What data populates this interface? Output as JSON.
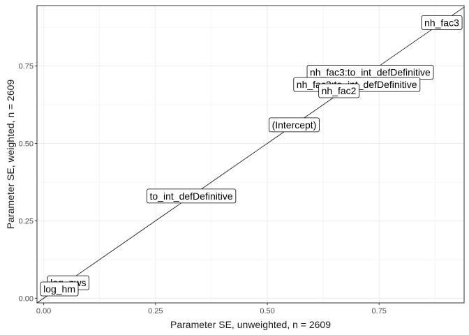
{
  "chart_data": {
    "type": "scatter",
    "xlabel": "Parameter SE, unweighted, n =  2609",
    "ylabel": "Parameter SE, weighted, n =  2609",
    "xlim": [
      -0.015,
      0.94
    ],
    "ylim": [
      -0.015,
      0.945
    ],
    "xticks": [
      0,
      0.25,
      0.5,
      0.75
    ],
    "yticks": [
      0,
      0.25,
      0.5,
      0.75
    ],
    "xtick_labels": [
      "0.00",
      "0.25",
      "0.50",
      "0.75"
    ],
    "ytick_labels": [
      "0.00",
      "0.25",
      "0.50",
      "0.75"
    ],
    "grid": true,
    "reference_line": "y = x",
    "points": [
      {
        "label": "nh_fac3",
        "x": 0.89,
        "y": 0.89
      },
      {
        "label": "nh_fac3:to_int_defDefinitive",
        "x": 0.73,
        "y": 0.73
      },
      {
        "label": "nh_fac2:to_int_defDefinitive",
        "x": 0.7,
        "y": 0.69
      },
      {
        "label": "nh_fac2",
        "x": 0.66,
        "y": 0.67
      },
      {
        "label": "(Intercept)",
        "x": 0.56,
        "y": 0.56
      },
      {
        "label": "to_int_defDefinitive",
        "x": 0.33,
        "y": 0.33
      },
      {
        "label": "log_pws",
        "x": 0.055,
        "y": 0.05
      },
      {
        "label": "log_hm",
        "x": 0.035,
        "y": 0.03
      }
    ]
  }
}
